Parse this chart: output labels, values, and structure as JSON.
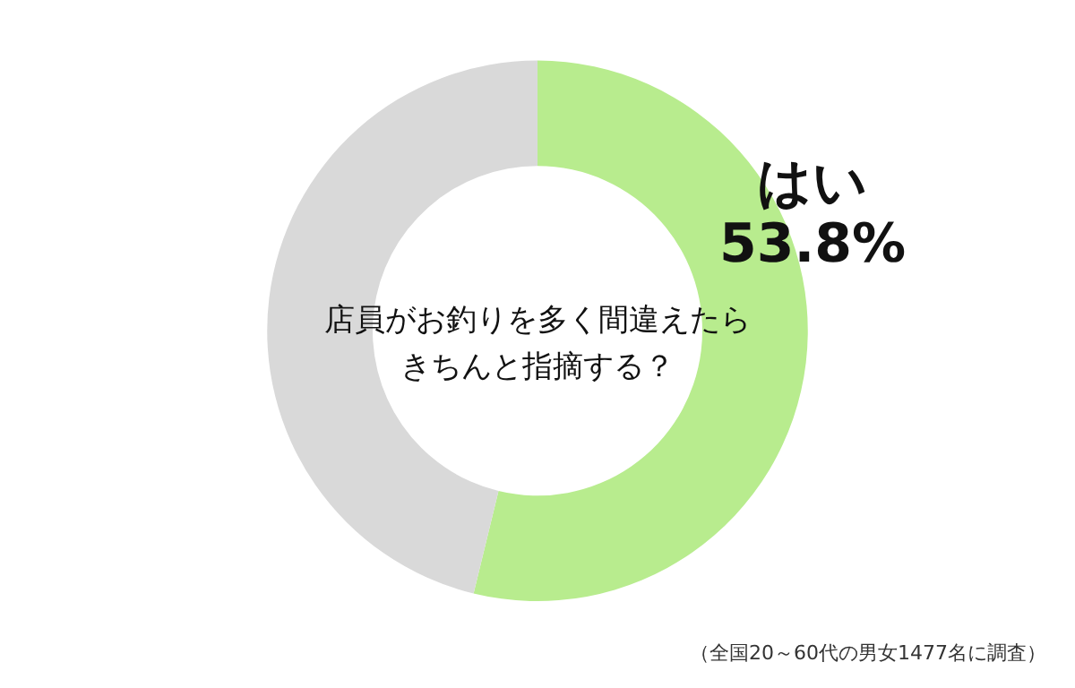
{
  "chart_data": {
    "type": "donut",
    "title": "店員がお釣りを多く間違えたらきちんと指摘する？",
    "categories": [
      "はい",
      null
    ],
    "values": [
      53.8,
      46.2
    ],
    "value_labels": [
      "53.8%",
      null
    ],
    "colors": [
      "#b8ec8e",
      "#d9d9d9"
    ],
    "legend": false,
    "annotations": [
      "（全国20～60代の男女1477名に調査）"
    ]
  }
}
